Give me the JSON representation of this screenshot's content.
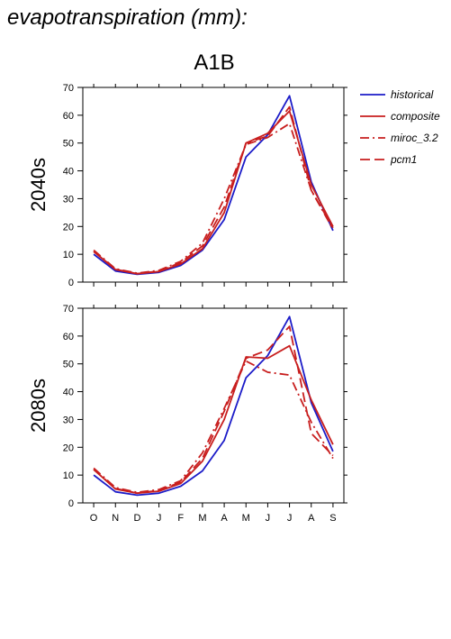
{
  "figure": {
    "title": "evapotranspiration (mm):",
    "scenario": "A1B"
  },
  "legend": {
    "position": "right",
    "entries": [
      {
        "label": "historical",
        "color": "#1c1cc8",
        "dash": "solid"
      },
      {
        "label": "composite",
        "color": "#c81e1e",
        "dash": "solid"
      },
      {
        "label": "miroc_3.2",
        "color": "#c81e1e",
        "dash": "dashdot"
      },
      {
        "label": "pcm1",
        "color": "#c81e1e",
        "dash": "dash"
      }
    ]
  },
  "chart_data": [
    {
      "type": "line",
      "ylabel": "2040s",
      "categories": [
        "O",
        "N",
        "D",
        "J",
        "F",
        "M",
        "A",
        "M",
        "J",
        "J",
        "A",
        "S"
      ],
      "ylim": [
        0,
        70
      ],
      "yticks": [
        0,
        10,
        20,
        30,
        40,
        50,
        60,
        70
      ],
      "grid": false,
      "series": [
        {
          "name": "historical",
          "values": [
            10,
            4,
            2.8,
            3.5,
            6,
            11.5,
            22.5,
            45,
            53,
            67,
            36,
            18.5
          ]
        },
        {
          "name": "composite",
          "values": [
            11,
            4.5,
            3,
            3.8,
            6.5,
            12,
            25,
            50,
            53.5,
            61.5,
            35,
            20
          ]
        },
        {
          "name": "miroc_3.2",
          "values": [
            11.5,
            4.8,
            3.2,
            4.2,
            7.5,
            14,
            30,
            49.5,
            52,
            57,
            33,
            19
          ]
        },
        {
          "name": "pcm1",
          "values": [
            11,
            4.6,
            3,
            4,
            7,
            13,
            27,
            50,
            52.5,
            63,
            33,
            19.5
          ]
        }
      ]
    },
    {
      "type": "line",
      "ylabel": "2080s",
      "categories": [
        "O",
        "N",
        "D",
        "J",
        "F",
        "M",
        "A",
        "M",
        "J",
        "J",
        "A",
        "S"
      ],
      "ylim": [
        0,
        70
      ],
      "yticks": [
        0,
        10,
        20,
        30,
        40,
        50,
        60,
        70
      ],
      "grid": false,
      "series": [
        {
          "name": "historical",
          "values": [
            10,
            4,
            2.8,
            3.5,
            6,
            11.5,
            22.5,
            45,
            53,
            67,
            36,
            18.5
          ]
        },
        {
          "name": "composite",
          "values": [
            12,
            5,
            3.5,
            4.2,
            7,
            15,
            30,
            52.5,
            52,
            56.5,
            37,
            21
          ]
        },
        {
          "name": "miroc_3.2",
          "values": [
            12.5,
            5.5,
            3.8,
            4.8,
            8,
            18,
            34,
            51,
            47,
            46,
            29,
            16
          ]
        },
        {
          "name": "pcm1",
          "values": [
            12,
            5.2,
            3.5,
            4.5,
            7.5,
            16,
            33,
            52,
            55,
            63.5,
            25,
            17
          ]
        }
      ]
    }
  ]
}
